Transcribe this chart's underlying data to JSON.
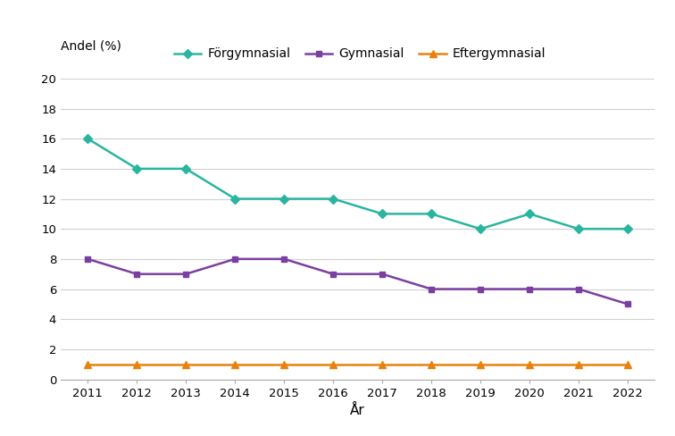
{
  "years": [
    2011,
    2012,
    2013,
    2014,
    2015,
    2016,
    2017,
    2018,
    2019,
    2020,
    2021,
    2022
  ],
  "forgymnasial": [
    16,
    14,
    14,
    12,
    12,
    12,
    11,
    11,
    10,
    11,
    10,
    10
  ],
  "gymnasial": [
    8,
    7,
    7,
    8,
    8,
    7,
    7,
    6,
    6,
    6,
    6,
    5
  ],
  "eftergymnasial": [
    1,
    1,
    1,
    1,
    1,
    1,
    1,
    1,
    1,
    1,
    1,
    1
  ],
  "forgymnasial_color": "#2ab5a0",
  "gymnasial_color": "#7b3fa0",
  "eftergymnasial_color": "#e8820c",
  "forgymnasial_label": "Förgymnasial",
  "gymnasial_label": "Gymnasial",
  "eftergymnasial_label": "Eftergymnasial",
  "andel_label": "Andel (%)",
  "xlabel": "År",
  "ylim": [
    0,
    20
  ],
  "yticks": [
    0,
    2,
    4,
    6,
    8,
    10,
    12,
    14,
    16,
    18,
    20
  ],
  "background_color": "#ffffff",
  "grid_color": "#d0d0d0"
}
